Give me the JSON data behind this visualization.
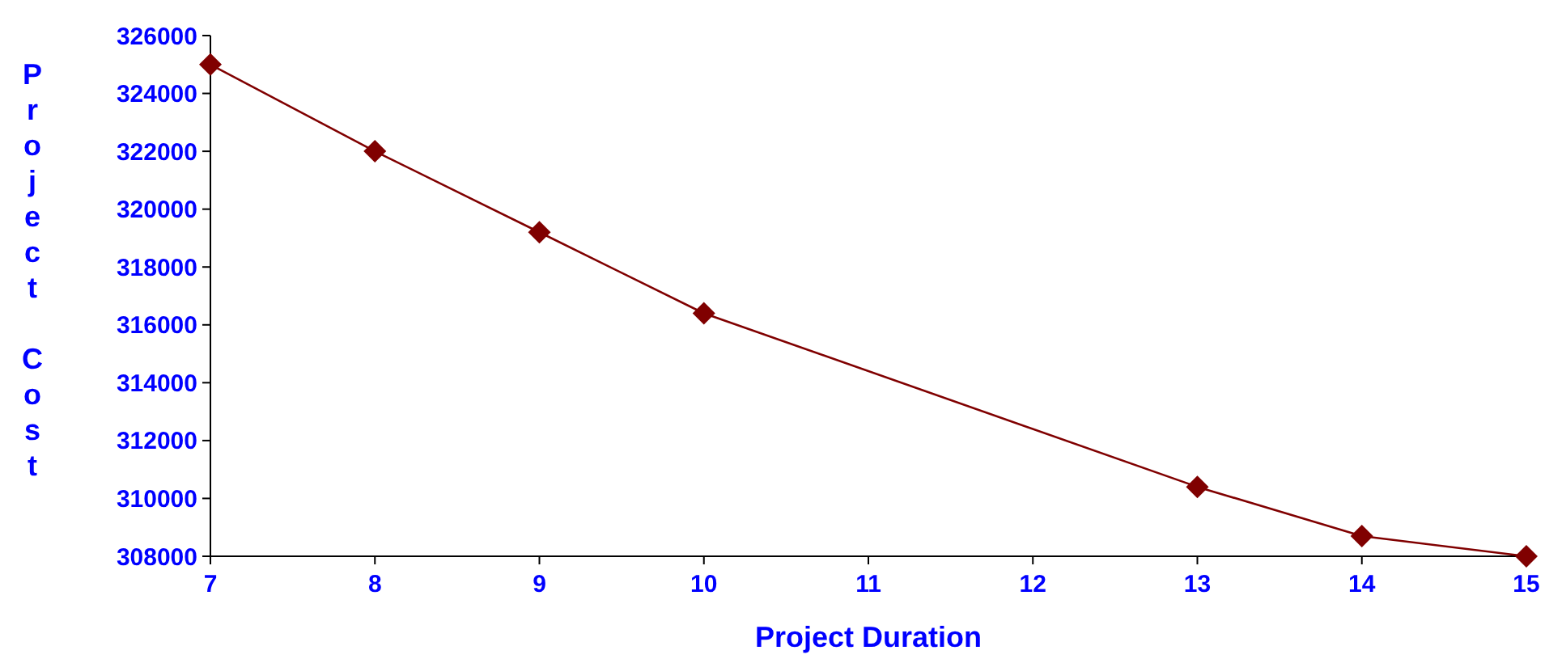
{
  "chart_data": {
    "type": "line",
    "xlabel": "Project Duration",
    "ylabel": "Project Cost",
    "x": [
      7,
      8,
      9,
      10,
      13,
      14,
      15
    ],
    "series": [
      {
        "color": "#800000",
        "values": [
          325000,
          322000,
          319200,
          316400,
          310400,
          308700,
          308000
        ]
      }
    ],
    "xlim": [
      7,
      15
    ],
    "xticks": [
      7,
      8,
      9,
      10,
      11,
      12,
      13,
      14,
      15
    ],
    "ylim": [
      308000,
      326000
    ],
    "yticks": [
      308000,
      310000,
      312000,
      314000,
      316000,
      318000,
      320000,
      322000,
      324000,
      326000
    ],
    "marker": "diamond"
  }
}
